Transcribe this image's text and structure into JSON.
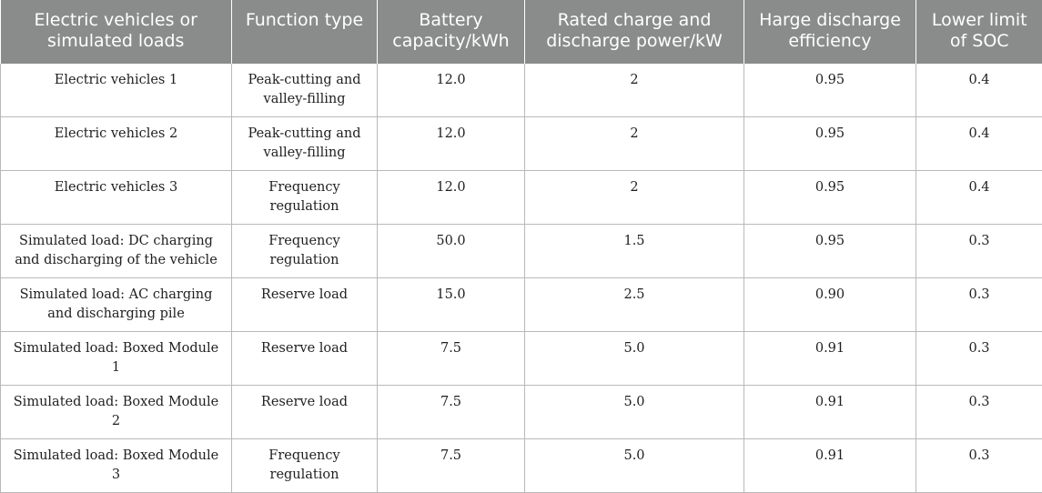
{
  "table": {
    "headers": [
      "Electric vehicles or simulated loads",
      "Function type",
      "Battery capacity/kWh",
      "Rated charge and discharge power/kW",
      "Harge discharge efficiency",
      "Lower limit of SOC"
    ],
    "rows": [
      [
        "Electric vehicles 1",
        "Peak-cutting and valley-filling",
        "12.0",
        "2",
        "0.95",
        "0.4"
      ],
      [
        "Electric vehicles 2",
        "Peak-cutting and valley-filling",
        "12.0",
        "2",
        "0.95",
        "0.4"
      ],
      [
        "Electric vehicles 3",
        "Frequency regulation",
        "12.0",
        "2",
        "0.95",
        "0.4"
      ],
      [
        "Simulated load: DC charging and discharging of the vehicle",
        "Frequency regulation",
        "50.0",
        "1.5",
        "0.95",
        "0.3"
      ],
      [
        "Simulated load: AC charging and discharging pile",
        "Reserve load",
        "15.0",
        "2.5",
        "0.90",
        "0.3"
      ],
      [
        "Simulated load: Boxed Module 1",
        "Reserve load",
        "7.5",
        "5.0",
        "0.91",
        "0.3"
      ],
      [
        "Simulated load: Boxed Module 2",
        "Reserve load",
        "7.5",
        "5.0",
        "0.91",
        "0.3"
      ],
      [
        "Simulated load: Boxed Module 3",
        "Frequency regulation",
        "7.5",
        "5.0",
        "0.91",
        "0.3"
      ]
    ]
  }
}
